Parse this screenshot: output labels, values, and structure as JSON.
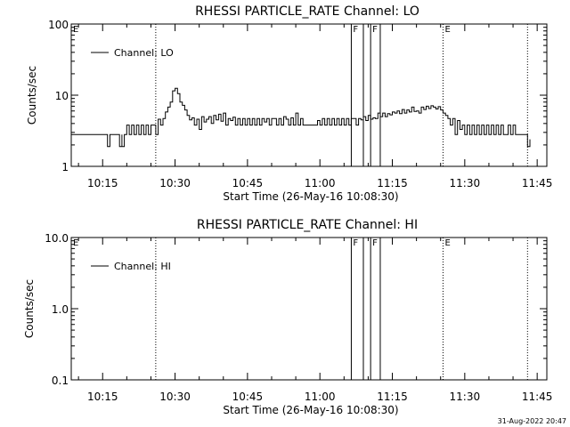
{
  "chart_data": [
    {
      "type": "line",
      "title": "RHESSI PARTICLE_RATE Channel: LO",
      "xlabel": "Start Time (26-May-16 10:08:30)",
      "ylabel": "Counts/sec",
      "yscale": "log",
      "ylim": [
        1,
        100
      ],
      "xlim": [
        "10:08:30",
        "11:47:00"
      ],
      "x_ticks": [
        "10:15",
        "10:30",
        "10:45",
        "11:00",
        "11:15",
        "11:30",
        "11:45"
      ],
      "y_ticks": [
        "1",
        "10",
        "100"
      ],
      "legend": {
        "label": "Channel: LO",
        "position": "top-left"
      },
      "grid": false,
      "event_markers": [
        {
          "time": "10:08:30",
          "style": "dotted",
          "label": "E"
        },
        {
          "time": "10:26:00",
          "style": "dotted",
          "label": ""
        },
        {
          "time": "11:06:30",
          "style": "solid",
          "label": "F"
        },
        {
          "time": "11:09:00",
          "style": "solid",
          "label": ""
        },
        {
          "time": "11:10:30",
          "style": "solid",
          "label": "F"
        },
        {
          "time": "11:12:30",
          "style": "solid",
          "label": ""
        },
        {
          "time": "11:25:30",
          "style": "dotted",
          "label": "E"
        },
        {
          "time": "11:43:00",
          "style": "dotted",
          "label": ""
        }
      ],
      "series": [
        {
          "x": [
            "10:08:30",
            "10:16:00",
            "10:16:00",
            "10:16:30",
            "10:16:30",
            "10:17:30",
            "10:18:30",
            "10:18:30",
            "10:19:00",
            "10:19:00",
            "10:19:30",
            "10:20:00",
            "10:20:30",
            "10:21:00",
            "10:21:30",
            "10:22:00",
            "10:22:30",
            "10:23:00",
            "10:23:30",
            "10:24:00",
            "10:24:30",
            "10:25:00",
            "10:26:00",
            "10:26:00",
            "10:26:30",
            "10:27:00",
            "10:27:30",
            "10:28:00",
            "10:28:30",
            "10:29:00",
            "10:29:30",
            "10:30:00",
            "10:30:30",
            "10:31:00",
            "10:31:30",
            "10:32:00",
            "10:32:30",
            "10:33:00",
            "10:33:30",
            "10:34:00",
            "10:34:30",
            "10:35:00",
            "10:35:30",
            "10:36:00",
            "10:36:30",
            "10:37:00",
            "10:37:30",
            "10:38:00",
            "10:38:30",
            "10:39:00",
            "10:39:30",
            "10:40:00",
            "10:40:30",
            "10:41:00",
            "10:41:30",
            "10:42:00",
            "10:42:30",
            "10:43:00",
            "10:43:30",
            "10:44:00",
            "10:44:30",
            "10:45:00",
            "10:45:30",
            "10:46:00",
            "10:46:30",
            "10:47:00",
            "10:47:30",
            "10:48:00",
            "10:48:30",
            "10:49:00",
            "10:49:30",
            "10:50:00",
            "10:50:30",
            "10:51:00",
            "10:51:30",
            "10:52:00",
            "10:52:30",
            "10:53:00",
            "10:53:30",
            "10:54:00",
            "10:54:30",
            "10:55:00",
            "10:55:30",
            "10:56:00",
            "10:56:30",
            "10:57:00",
            "10:57:30",
            "10:58:00",
            "10:58:30",
            "10:59:00",
            "10:59:30",
            "11:00:00",
            "11:00:30",
            "11:01:00",
            "11:01:30",
            "11:02:00",
            "11:02:30",
            "11:03:00",
            "11:03:30",
            "11:04:00",
            "11:04:30",
            "11:05:00",
            "11:05:30",
            "11:06:00",
            "11:06:30",
            "11:07:00",
            "11:07:30",
            "11:08:00",
            "11:08:30",
            "11:09:00",
            "11:09:30",
            "11:10:00",
            "11:10:30",
            "11:11:00",
            "11:11:30",
            "11:12:00",
            "11:12:30",
            "11:13:00",
            "11:13:30",
            "11:14:00",
            "11:14:30",
            "11:15:00",
            "11:15:30",
            "11:16:00",
            "11:16:30",
            "11:17:00",
            "11:17:30",
            "11:18:00",
            "11:18:30",
            "11:19:00",
            "11:19:30",
            "11:20:00",
            "11:20:30",
            "11:21:00",
            "11:21:30",
            "11:22:00",
            "11:22:30",
            "11:23:00",
            "11:23:30",
            "11:24:00",
            "11:24:30",
            "11:25:00",
            "11:25:30",
            "11:26:00",
            "11:26:30",
            "11:27:00",
            "11:27:30",
            "11:28:00",
            "11:28:30",
            "11:29:00",
            "11:29:30",
            "11:30:00",
            "11:30:30",
            "11:31:00",
            "11:31:30",
            "11:32:00",
            "11:32:30",
            "11:33:00",
            "11:33:30",
            "11:34:00",
            "11:34:30",
            "11:35:00",
            "11:35:30",
            "11:36:00",
            "11:36:30",
            "11:37:00",
            "11:37:30",
            "11:38:00",
            "11:38:30",
            "11:39:00",
            "11:39:30",
            "11:40:00",
            "11:40:30",
            "11:41:00",
            "11:41:30",
            "11:42:00",
            "11:42:30",
            "11:43:00",
            "11:43:30"
          ],
          "y": [
            2.8,
            2.8,
            1.9,
            2.8,
            2.8,
            2.8,
            2.8,
            1.9,
            2.8,
            1.9,
            2.8,
            3.8,
            2.8,
            3.8,
            2.8,
            3.8,
            2.8,
            3.8,
            2.8,
            3.8,
            2.8,
            3.8,
            3.8,
            2.8,
            4.6,
            3.8,
            4.7,
            5.8,
            6.8,
            8.0,
            11.5,
            12.5,
            10.5,
            8.0,
            7.2,
            6.2,
            5.2,
            4.5,
            4.8,
            3.8,
            4.6,
            3.3,
            5.0,
            4.2,
            4.6,
            5.0,
            4.0,
            5.2,
            4.5,
            5.4,
            4.3,
            5.6,
            3.8,
            4.7,
            4.4,
            4.9,
            3.8,
            4.7,
            3.8,
            4.7,
            3.8,
            4.7,
            3.8,
            4.7,
            3.8,
            4.7,
            3.8,
            4.7,
            4.2,
            4.7,
            3.8,
            4.7,
            4.7,
            3.8,
            4.7,
            3.8,
            5.0,
            4.6,
            3.8,
            4.8,
            3.8,
            5.6,
            3.8,
            4.7,
            3.8,
            3.8,
            3.8,
            3.8,
            3.8,
            3.8,
            4.4,
            3.8,
            4.7,
            3.8,
            4.7,
            3.8,
            4.7,
            3.8,
            4.7,
            3.8,
            4.7,
            3.8,
            4.7,
            3.8,
            4.7,
            4.7,
            3.8,
            4.7,
            4.5,
            5.0,
            4.4,
            5.2,
            4.6,
            4.8,
            4.7,
            5.6,
            5.0,
            5.6,
            5.0,
            5.5,
            5.3,
            5.8,
            5.6,
            6.0,
            5.5,
            6.3,
            5.6,
            6.2,
            5.8,
            6.8,
            5.9,
            6.0,
            5.6,
            6.8,
            6.3,
            7.0,
            6.5,
            7.1,
            6.8,
            6.4,
            6.9,
            6.2,
            5.6,
            5.2,
            4.7,
            3.8,
            4.7,
            2.8,
            4.4,
            3.3,
            3.8,
            2.8,
            3.8,
            2.8,
            3.8,
            2.8,
            3.8,
            2.8,
            3.8,
            2.8,
            3.8,
            2.8,
            3.8,
            2.8,
            3.8,
            2.8,
            3.8,
            2.8,
            2.8,
            3.8,
            2.8,
            3.8,
            2.8,
            2.8,
            2.8,
            2.8,
            2.8,
            1.9,
            2.4
          ]
        }
      ]
    },
    {
      "type": "line",
      "title": "RHESSI PARTICLE_RATE Channel: HI",
      "xlabel": "Start Time (26-May-16 10:08:30)",
      "ylabel": "Counts/sec",
      "yscale": "log",
      "ylim": [
        0.1,
        10
      ],
      "xlim": [
        "10:08:30",
        "11:47:00"
      ],
      "x_ticks": [
        "10:15",
        "10:30",
        "10:45",
        "11:00",
        "11:15",
        "11:30",
        "11:45"
      ],
      "y_ticks": [
        "0.1",
        "1.0",
        "10.0"
      ],
      "legend": {
        "label": "Channel: HI",
        "position": "top-left"
      },
      "grid": false,
      "event_markers": [
        {
          "time": "10:08:30",
          "style": "dotted",
          "label": "E"
        },
        {
          "time": "10:26:00",
          "style": "dotted",
          "label": ""
        },
        {
          "time": "11:06:30",
          "style": "solid",
          "label": "F"
        },
        {
          "time": "11:09:00",
          "style": "solid",
          "label": ""
        },
        {
          "time": "11:10:30",
          "style": "solid",
          "label": "F"
        },
        {
          "time": "11:12:30",
          "style": "solid",
          "label": ""
        },
        {
          "time": "11:25:30",
          "style": "dotted",
          "label": "E"
        },
        {
          "time": "11:43:00",
          "style": "dotted",
          "label": ""
        }
      ],
      "series": []
    }
  ],
  "timestamp": "31-Aug-2022 20:47"
}
